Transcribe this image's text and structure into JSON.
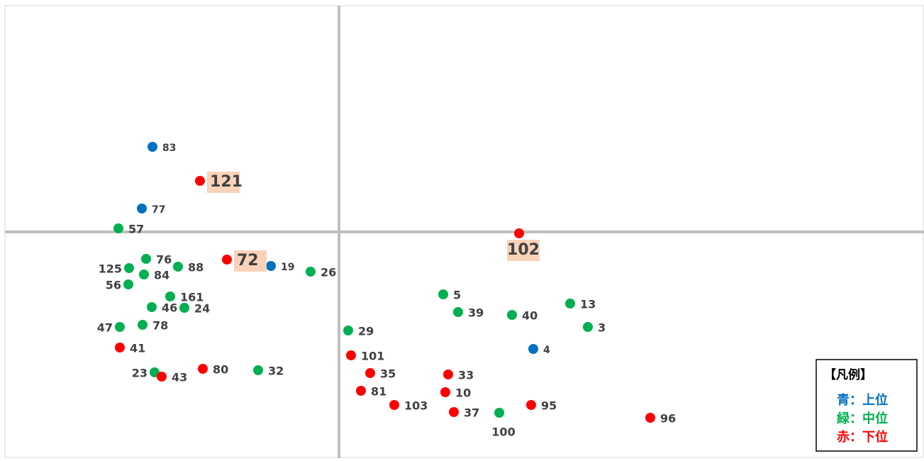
{
  "chart_data": {
    "type": "scatter",
    "xlim": [
      -47.1,
      82.5
    ],
    "ylim": [
      -31.9,
      31.9
    ],
    "legend_title": "【凡例】",
    "legend_position": "lower right",
    "series": [
      {
        "name": "青：上位",
        "color": "#0070c0",
        "labels": [
          "83",
          "77",
          "19",
          "4"
        ],
        "x": [
          -26.3,
          -27.8,
          -9.6,
          27.4
        ],
        "values": [
          12.0,
          3.3,
          -4.8,
          -16.5
        ]
      },
      {
        "name": "緑：中位",
        "color": "#00b050",
        "labels": [
          "57",
          "76",
          "125",
          "88",
          "84",
          "56",
          "161",
          "46",
          "24",
          "47",
          "78",
          "23",
          "32",
          "26",
          "5",
          "39",
          "40",
          "13",
          "3",
          "29",
          "100"
        ],
        "x": [
          -31.1,
          -27.2,
          -29.6,
          -22.7,
          -27.5,
          -29.7,
          -23.8,
          -26.4,
          -21.8,
          -30.9,
          -27.7,
          -26.0,
          -11.4,
          -4.0,
          14.7,
          16.8,
          24.4,
          32.6,
          35.1,
          1.3,
          22.6
        ],
        "values": [
          0.5,
          -3.8,
          -5.1,
          -4.9,
          -6.0,
          -7.4,
          -9.1,
          -10.6,
          -10.7,
          -13.4,
          -13.1,
          -19.8,
          -19.5,
          -5.6,
          -8.8,
          -11.3,
          -11.7,
          -10.1,
          -13.4,
          -13.9,
          -25.5
        ]
      },
      {
        "name": "赤：下位",
        "color": "#ff0000",
        "labels": [
          "121",
          "72",
          "102",
          "41",
          "43",
          "80",
          "101",
          "35",
          "81",
          "103",
          "33",
          "10",
          "37",
          "95",
          "96"
        ],
        "x": [
          -19.6,
          -15.8,
          25.4,
          -30.9,
          -25.0,
          -19.2,
          1.7,
          4.4,
          3.1,
          7.8,
          15.4,
          15.0,
          16.2,
          27.1,
          43.9
        ],
        "values": [
          7.2,
          -3.9,
          -0.2,
          -16.3,
          -20.4,
          -19.3,
          -17.4,
          -19.9,
          -22.4,
          -24.4,
          -20.1,
          -22.6,
          -25.4,
          -24.4,
          -26.2
        ]
      }
    ]
  }
}
